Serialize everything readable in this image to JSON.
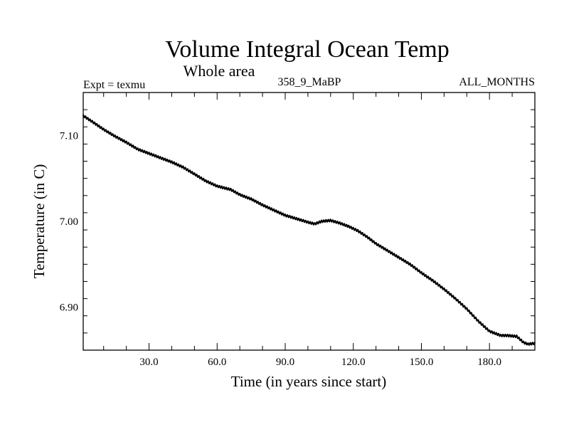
{
  "chart_data": {
    "type": "line",
    "title": "Volume Integral Ocean Temp",
    "subtitle": "Whole area",
    "top_left": "Expt = texmu",
    "top_center": "358_9_MaBP",
    "top_right": "ALL_MONTHS",
    "xlabel": "Time (in years since start)",
    "ylabel": "Temperature (in C)",
    "xlim": [
      1,
      200
    ],
    "ylim": [
      6.85,
      7.15
    ],
    "xticks": [
      30,
      60,
      90,
      120,
      150,
      180
    ],
    "xtick_labels": [
      "30.0",
      "60.0",
      "90.0",
      "120.0",
      "150.0",
      "180.0"
    ],
    "yticks": [
      6.9,
      7.0,
      7.1
    ],
    "ytick_labels": [
      "6.90",
      "7.00",
      "7.10"
    ],
    "series": [
      {
        "name": "Volume Integral Ocean Temp",
        "x": [
          1,
          5,
          10,
          15,
          20,
          25,
          30,
          35,
          40,
          45,
          50,
          55,
          60,
          63,
          66,
          70,
          75,
          80,
          85,
          90,
          95,
          100,
          103,
          106,
          110,
          114,
          118,
          122,
          126,
          130,
          135,
          140,
          145,
          150,
          155,
          160,
          165,
          170,
          175,
          180,
          185,
          188,
          192,
          195,
          197,
          200
        ],
        "values": [
          7.123,
          7.116,
          7.107,
          7.099,
          7.092,
          7.084,
          7.079,
          7.074,
          7.069,
          7.063,
          7.055,
          7.047,
          7.041,
          7.039,
          7.037,
          7.031,
          7.026,
          7.019,
          7.013,
          7.007,
          7.003,
          6.999,
          6.997,
          7.0,
          7.001,
          6.998,
          6.994,
          6.989,
          6.982,
          6.974,
          6.966,
          6.958,
          6.95,
          6.94,
          6.931,
          6.921,
          6.91,
          6.898,
          6.884,
          6.872,
          6.867,
          6.867,
          6.866,
          6.859,
          6.857,
          6.858
        ]
      }
    ]
  }
}
